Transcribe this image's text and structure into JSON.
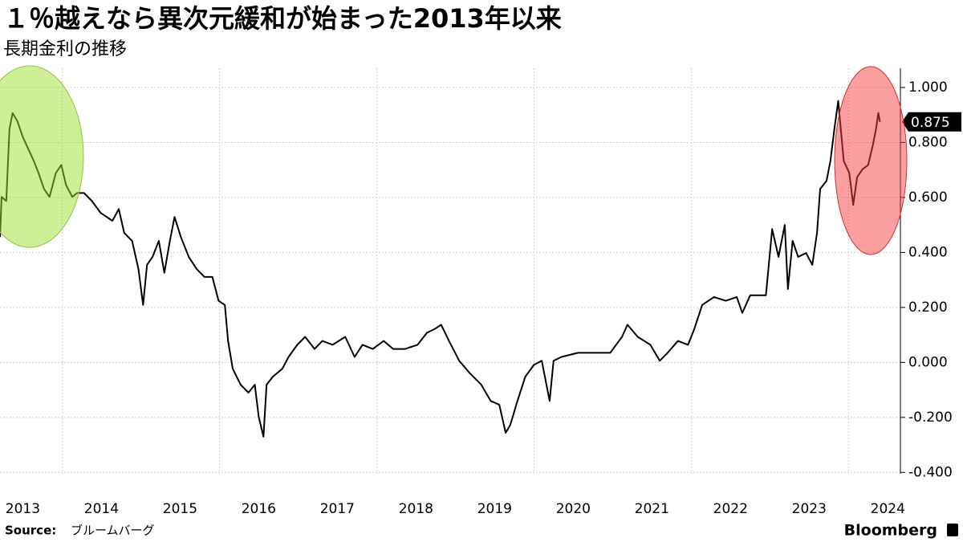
{
  "chart_data": {
    "type": "line",
    "title": "１％越えなら異次元緩和が始まった2013年以来",
    "subtitle": "長期金利の推移",
    "source_label": "Source:",
    "source": "ブルームバーグ",
    "brand": "Bloomberg",
    "color": "#000000",
    "grid": true,
    "x": [
      2013.21,
      2013.23,
      2013.29,
      2013.33,
      2013.37,
      2013.43,
      2013.5,
      2013.57,
      2013.64,
      2013.7,
      2013.77,
      2013.84,
      2013.92,
      2013.99,
      2014.05,
      2014.13,
      2014.19,
      2014.28,
      2014.38,
      2014.49,
      2014.64,
      2014.72,
      2014.79,
      2014.89,
      2014.97,
      2015.03,
      2015.08,
      2015.15,
      2015.23,
      2015.3,
      2015.37,
      2015.43,
      2015.51,
      2015.61,
      2015.71,
      2015.81,
      2015.91,
      2015.99,
      2016.07,
      2016.11,
      2016.17,
      2016.27,
      2016.37,
      2016.45,
      2016.5,
      2016.56,
      2016.6,
      2016.68,
      2016.8,
      2016.88,
      2016.99,
      2017.09,
      2017.21,
      2017.31,
      2017.44,
      2017.6,
      2017.72,
      2017.82,
      2017.95,
      2018.09,
      2018.21,
      2018.36,
      2018.52,
      2018.64,
      2018.74,
      2018.82,
      2018.92,
      2019.05,
      2019.18,
      2019.33,
      2019.45,
      2019.56,
      2019.64,
      2019.7,
      2019.79,
      2019.89,
      2020.0,
      2020.1,
      2020.2,
      2020.25,
      2020.35,
      2020.56,
      2020.76,
      2020.97,
      2021.12,
      2021.19,
      2021.32,
      2021.48,
      2021.6,
      2021.7,
      2021.83,
      2021.96,
      2022.04,
      2022.14,
      2022.29,
      2022.44,
      2022.58,
      2022.65,
      2022.75,
      2022.95,
      2023.03,
      2023.11,
      2023.19,
      2023.23,
      2023.29,
      2023.36,
      2023.46,
      2023.54,
      2023.6,
      2023.64,
      2023.72,
      2023.77,
      2023.82,
      2023.87,
      2023.94,
      2024.01,
      2024.06,
      2024.11,
      2024.18,
      2024.25,
      2024.31,
      2024.35,
      2024.38,
      2024.4
    ],
    "values": [
      0.456,
      0.602,
      0.587,
      0.849,
      0.907,
      0.878,
      0.82,
      0.776,
      0.733,
      0.689,
      0.631,
      0.602,
      0.689,
      0.718,
      0.645,
      0.602,
      0.616,
      0.616,
      0.587,
      0.544,
      0.515,
      0.558,
      0.471,
      0.442,
      0.34,
      0.209,
      0.355,
      0.384,
      0.442,
      0.326,
      0.442,
      0.529,
      0.456,
      0.384,
      0.34,
      0.311,
      0.311,
      0.224,
      0.209,
      0.078,
      -0.023,
      -0.081,
      -0.11,
      -0.081,
      -0.198,
      -0.27,
      -0.081,
      -0.052,
      -0.023,
      0.02,
      0.064,
      0.093,
      0.049,
      0.078,
      0.064,
      0.093,
      0.02,
      0.064,
      0.049,
      0.078,
      0.049,
      0.049,
      0.064,
      0.108,
      0.122,
      0.137,
      0.078,
      0.006,
      -0.038,
      -0.081,
      -0.14,
      -0.154,
      -0.256,
      -0.227,
      -0.14,
      -0.052,
      -0.009,
      0.006,
      -0.14,
      0.006,
      0.02,
      0.035,
      0.035,
      0.035,
      0.093,
      0.137,
      0.093,
      0.064,
      0.006,
      0.035,
      0.078,
      0.064,
      0.122,
      0.209,
      0.238,
      0.224,
      0.238,
      0.18,
      0.244,
      0.244,
      0.485,
      0.384,
      0.5,
      0.267,
      0.442,
      0.384,
      0.398,
      0.355,
      0.471,
      0.631,
      0.66,
      0.733,
      0.849,
      0.951,
      0.733,
      0.689,
      0.573,
      0.674,
      0.703,
      0.718,
      0.791,
      0.849,
      0.907,
      0.875
    ],
    "last_value_label": "0.875",
    "xlim": [
      2013.21,
      2024.64
    ],
    "xticks": [
      {
        "value": 2013.5,
        "label": "2013"
      },
      {
        "value": 2014.5,
        "label": "2014"
      },
      {
        "value": 2015.5,
        "label": "2015"
      },
      {
        "value": 2016.5,
        "label": "2016"
      },
      {
        "value": 2017.5,
        "label": "2017"
      },
      {
        "value": 2018.5,
        "label": "2018"
      },
      {
        "value": 2019.5,
        "label": "2019"
      },
      {
        "value": 2020.5,
        "label": "2020"
      },
      {
        "value": 2021.5,
        "label": "2021"
      },
      {
        "value": 2022.5,
        "label": "2022"
      },
      {
        "value": 2023.5,
        "label": "2023"
      },
      {
        "value": 2024.5,
        "label": "2024"
      }
    ],
    "xgrid": [
      2014,
      2016,
      2018,
      2020,
      2022,
      2024
    ],
    "ylim": [
      -0.405,
      1.07
    ],
    "yticks": [
      {
        "value": -0.4,
        "label": "-0.400"
      },
      {
        "value": -0.2,
        "label": "-0.200"
      },
      {
        "value": 0,
        "label": "0.000"
      },
      {
        "value": 0.2,
        "label": "0.200"
      },
      {
        "value": 0.4,
        "label": "0.400"
      },
      {
        "value": 0.6,
        "label": "0.600"
      },
      {
        "value": 0.8,
        "label": "0.800"
      },
      {
        "value": 1,
        "label": "1.000"
      }
    ]
  }
}
